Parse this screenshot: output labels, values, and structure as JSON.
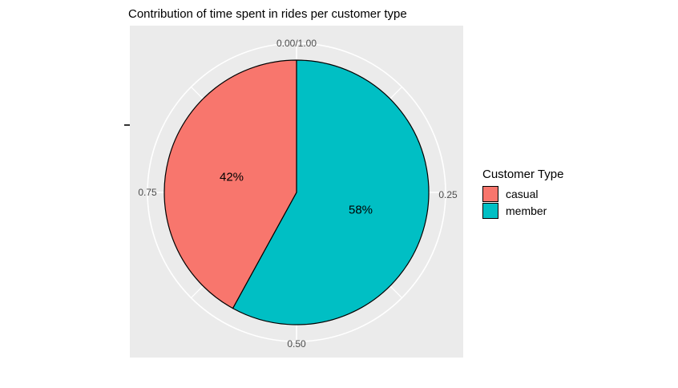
{
  "chart_data": {
    "type": "pie",
    "coordinate": "polar",
    "direction": "clockwise",
    "start": "top",
    "title": "Contribution of time spent in rides per customer type",
    "series": [
      {
        "name": "casual",
        "value": 0.42,
        "label": "42%",
        "color": "#F8766D"
      },
      {
        "name": "member",
        "value": 0.58,
        "label": "58%",
        "color": "#00BFC4"
      }
    ],
    "theta_axis_ticks": {
      "top": "0.00/1.00",
      "right": "0.25",
      "bottom": "0.50",
      "left": "0.75"
    },
    "legend": {
      "title": "Customer Type",
      "position": "right"
    },
    "colors": {
      "panel_background": "#EBEBEB",
      "gridline": "#FFFFFF",
      "slice_border": "#000000",
      "axis_text": "#4D4D4D",
      "tick": "#333333"
    }
  }
}
